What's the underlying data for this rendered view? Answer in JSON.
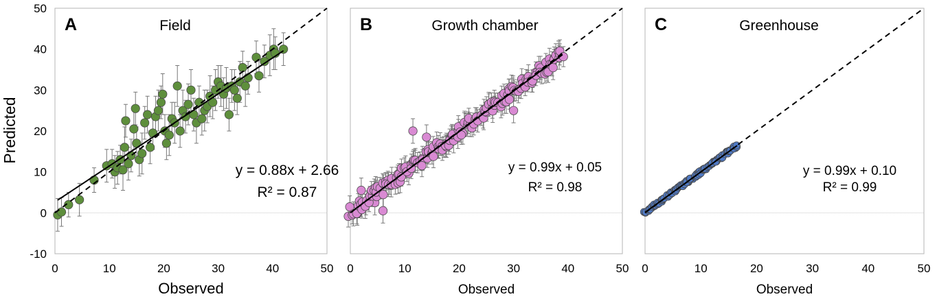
{
  "figure": {
    "y_axis_label": "Predicted",
    "y_ticks": [
      "50",
      "40",
      "30",
      "20",
      "10",
      "0",
      "-10"
    ],
    "colors": {
      "field": "#5e8f3c",
      "growth_chamber": "#d98ad3",
      "greenhouse": "#4f79c4",
      "error_bar": "#777777",
      "frame": "#b5b5b5"
    }
  },
  "chart_data": [
    {
      "type": "scatter",
      "panel": "A",
      "title": "Field",
      "xlabel": "Observed",
      "ylabel": "Predicted",
      "xlim": [
        0,
        50
      ],
      "ylim": [
        -10,
        50
      ],
      "x_ticks": [
        "0",
        "10",
        "20",
        "30",
        "40",
        "50"
      ],
      "equation": "y = 0.88x + 2.66",
      "r2": "R² = 0.87",
      "fit": {
        "slope": 0.88,
        "intercept": 2.66,
        "x_range": [
          0.5,
          42
        ]
      },
      "reference_line": "1:1",
      "series": [
        {
          "name": "Field",
          "points": [
            {
              "x": 0.5,
              "y": -0.5,
              "err": 4
            },
            {
              "x": 1.2,
              "y": 0.2,
              "err": 3.5
            },
            {
              "x": 2.5,
              "y": 2,
              "err": 3
            },
            {
              "x": 4.5,
              "y": 3.2,
              "err": 4
            },
            {
              "x": 7.2,
              "y": 8,
              "err": 3
            },
            {
              "x": 9.5,
              "y": 11.5,
              "err": 4
            },
            {
              "x": 10.5,
              "y": 12,
              "err": 3.5
            },
            {
              "x": 11,
              "y": 10,
              "err": 4
            },
            {
              "x": 11.5,
              "y": 11,
              "err": 4
            },
            {
              "x": 12,
              "y": 13,
              "err": 3.5
            },
            {
              "x": 12.5,
              "y": 10.5,
              "err": 5
            },
            {
              "x": 12.8,
              "y": 16,
              "err": 5
            },
            {
              "x": 13,
              "y": 22.5,
              "err": 4
            },
            {
              "x": 13.5,
              "y": 12,
              "err": 4
            },
            {
              "x": 14,
              "y": 14,
              "err": 4
            },
            {
              "x": 14.5,
              "y": 20.5,
              "err": 5
            },
            {
              "x": 14.8,
              "y": 25.5,
              "err": 4
            },
            {
              "x": 15,
              "y": 17,
              "err": 4
            },
            {
              "x": 15.5,
              "y": 13,
              "err": 4
            },
            {
              "x": 16,
              "y": 14.5,
              "err": 5
            },
            {
              "x": 16.5,
              "y": 22,
              "err": 4
            },
            {
              "x": 17,
              "y": 24,
              "err": 4.5
            },
            {
              "x": 17.5,
              "y": 16,
              "err": 4
            },
            {
              "x": 18,
              "y": 19.5,
              "err": 4
            },
            {
              "x": 18.5,
              "y": 23.5,
              "err": 5
            },
            {
              "x": 19,
              "y": 25,
              "err": 5
            },
            {
              "x": 19.5,
              "y": 27,
              "err": 4
            },
            {
              "x": 19.8,
              "y": 29,
              "err": 5
            },
            {
              "x": 20.2,
              "y": 20,
              "err": 4
            },
            {
              "x": 20.5,
              "y": 17,
              "err": 4
            },
            {
              "x": 21,
              "y": 19,
              "err": 5
            },
            {
              "x": 21.5,
              "y": 23,
              "err": 4
            },
            {
              "x": 22,
              "y": 22,
              "err": 5
            },
            {
              "x": 22.5,
              "y": 31,
              "err": 5
            },
            {
              "x": 23,
              "y": 20,
              "err": 4
            },
            {
              "x": 23.5,
              "y": 25,
              "err": 5
            },
            {
              "x": 24,
              "y": 23.5,
              "err": 4
            },
            {
              "x": 24.5,
              "y": 26.5,
              "err": 5
            },
            {
              "x": 25,
              "y": 30,
              "err": 5
            },
            {
              "x": 25.5,
              "y": 24,
              "err": 4
            },
            {
              "x": 26,
              "y": 22,
              "err": 5
            },
            {
              "x": 26.5,
              "y": 27,
              "err": 4
            },
            {
              "x": 27,
              "y": 23,
              "err": 4
            },
            {
              "x": 27.5,
              "y": 25,
              "err": 5
            },
            {
              "x": 28,
              "y": 26,
              "err": 4
            },
            {
              "x": 28.5,
              "y": 28.5,
              "err": 5
            },
            {
              "x": 29,
              "y": 27,
              "err": 4
            },
            {
              "x": 29.5,
              "y": 30,
              "err": 5
            },
            {
              "x": 30,
              "y": 32,
              "err": 4
            },
            {
              "x": 30.5,
              "y": 31,
              "err": 5
            },
            {
              "x": 31,
              "y": 29,
              "err": 4
            },
            {
              "x": 31.5,
              "y": 30.5,
              "err": 5
            },
            {
              "x": 32,
              "y": 24,
              "err": 4
            },
            {
              "x": 32.5,
              "y": 31,
              "err": 4
            },
            {
              "x": 33,
              "y": 30,
              "err": 5
            },
            {
              "x": 33.5,
              "y": 28,
              "err": 4
            },
            {
              "x": 34,
              "y": 32,
              "err": 5
            },
            {
              "x": 34.5,
              "y": 35.5,
              "err": 4
            },
            {
              "x": 35,
              "y": 31,
              "err": 5
            },
            {
              "x": 35.5,
              "y": 33,
              "err": 4
            },
            {
              "x": 37,
              "y": 38,
              "err": 4
            },
            {
              "x": 37.5,
              "y": 33.5,
              "err": 4
            },
            {
              "x": 38.5,
              "y": 37,
              "err": 4
            },
            {
              "x": 39.5,
              "y": 38.5,
              "err": 5
            },
            {
              "x": 40.2,
              "y": 40,
              "err": 5
            },
            {
              "x": 40.5,
              "y": 39,
              "err": 4
            },
            {
              "x": 42,
              "y": 40,
              "err": 4
            }
          ]
        }
      ]
    },
    {
      "type": "scatter",
      "panel": "B",
      "title": "Growth chamber",
      "xlabel": "Observed",
      "ylabel": "Predicted",
      "xlim": [
        0,
        50
      ],
      "ylim": [
        -10,
        50
      ],
      "x_ticks": [
        "0",
        "10",
        "20",
        "30",
        "40",
        "50"
      ],
      "equation": "y = 0.99x + 0.05",
      "r2": "R² = 0.98",
      "fit": {
        "slope": 0.99,
        "intercept": 0.05,
        "x_range": [
          0,
          39
        ]
      },
      "reference_line": "1:1",
      "series": [
        {
          "name": "Growth chamber",
          "generated": {
            "x_start": 0,
            "x_end": 39,
            "count": 170,
            "slope": 0.99,
            "intercept": 0.05,
            "noise_amplitude": 1.6,
            "err": 3
          },
          "points": [
            {
              "x": 11.5,
              "y": 20,
              "err": 3
            },
            {
              "x": 30,
              "y": 25,
              "err": 3
            },
            {
              "x": 4.5,
              "y": 2.5,
              "err": 3
            },
            {
              "x": 6,
              "y": 0.5,
              "err": 3
            },
            {
              "x": 2,
              "y": 5.5,
              "err": 3
            },
            {
              "x": 14,
              "y": 18.5,
              "err": 3
            }
          ]
        }
      ]
    },
    {
      "type": "scatter",
      "panel": "C",
      "title": "Greenhouse",
      "xlabel": "Observed",
      "ylabel": "Predicted",
      "xlim": [
        0,
        50
      ],
      "ylim": [
        -10,
        50
      ],
      "x_ticks": [
        "0",
        "10",
        "20",
        "30",
        "40",
        "50"
      ],
      "equation": "y = 0.99x + 0.10",
      "r2": "R² = 0.99",
      "fit": {
        "slope": 0.99,
        "intercept": 0.1,
        "x_range": [
          0,
          16.5
        ]
      },
      "reference_line": "1:1",
      "series": [
        {
          "name": "Greenhouse",
          "generated": {
            "x_start": 0,
            "x_end": 16.5,
            "count": 120,
            "slope": 0.99,
            "intercept": 0.1,
            "noise_amplitude": 0.35,
            "err": 0.8
          },
          "points": []
        }
      ]
    }
  ]
}
